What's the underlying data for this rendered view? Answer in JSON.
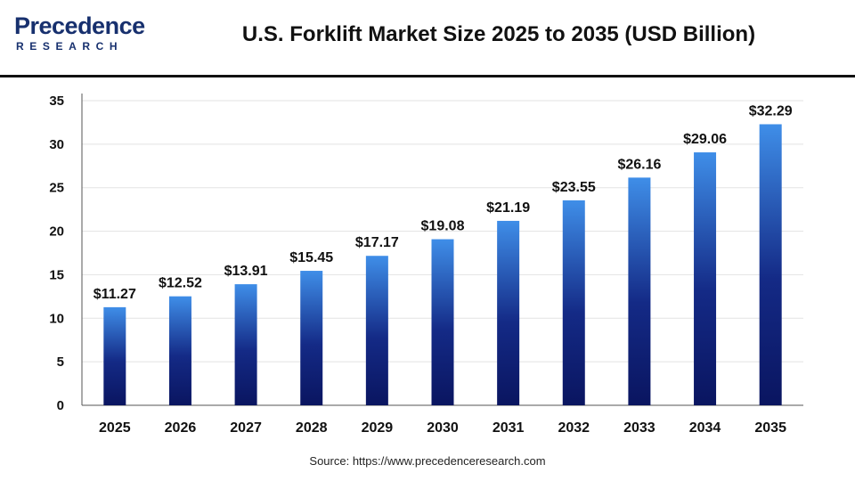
{
  "header": {
    "logo_top": "Precedence",
    "logo_bottom": "RESEARCH",
    "title": "U.S. Forklift Market Size 2025 to 2035 (USD Billion)"
  },
  "source": "Source: https://www.precedenceresearch.com",
  "colors": {
    "bar_top": "#3f8ee8",
    "bar_bottom": "#0a1560",
    "grid": "#e3e3e3",
    "axis": "#555555",
    "brand": "#17306e"
  },
  "chart_data": {
    "type": "bar",
    "title": "U.S. Forklift Market Size 2025 to 2035 (USD Billion)",
    "xlabel": "",
    "ylabel": "",
    "categories": [
      "2025",
      "2026",
      "2027",
      "2028",
      "2029",
      "2030",
      "2031",
      "2032",
      "2033",
      "2034",
      "2035"
    ],
    "values": [
      11.27,
      12.52,
      13.91,
      15.45,
      17.17,
      19.08,
      21.19,
      23.55,
      26.16,
      29.06,
      32.29
    ],
    "value_labels": [
      "$11.27",
      "$12.52",
      "$13.91",
      "$15.45",
      "$17.17",
      "$19.08",
      "$21.19",
      "$23.55",
      "$26.16",
      "$29.06",
      "$32.29"
    ],
    "ylim": [
      0,
      35
    ],
    "yticks": [
      "0",
      "5",
      "10",
      "15",
      "20",
      "25",
      "30",
      "35"
    ],
    "grid": true,
    "legend": "none"
  }
}
